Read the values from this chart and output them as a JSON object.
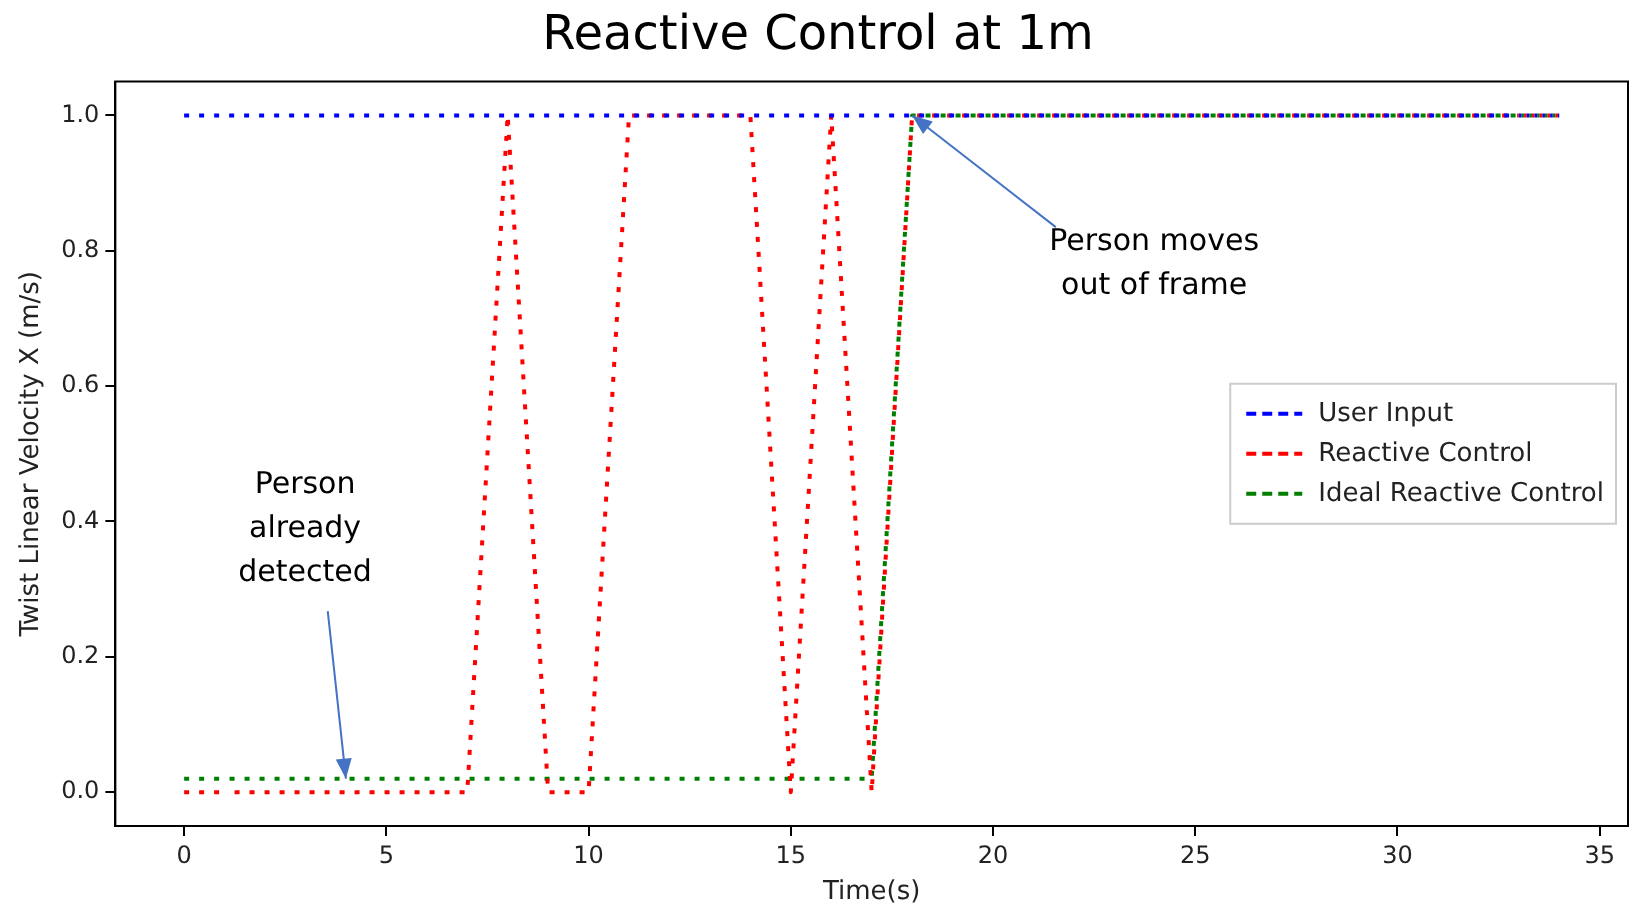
{
  "chart_data": {
    "type": "line",
    "title": "Reactive Control at 1m",
    "xlabel": "Time(s)",
    "ylabel": "Twist Linear Velocity X (m/s)",
    "x": [
      0,
      1,
      2,
      3,
      4,
      5,
      6,
      7,
      8,
      9,
      10,
      11,
      12,
      13,
      14,
      15,
      16,
      17,
      18,
      19,
      20,
      21,
      22,
      23,
      24,
      25,
      26,
      27,
      28,
      29,
      30,
      31,
      32,
      33,
      34
    ],
    "series": [
      {
        "name": "User Input",
        "color": "#0000ff",
        "values": [
          1,
          1,
          1,
          1,
          1,
          1,
          1,
          1,
          1,
          1,
          1,
          1,
          1,
          1,
          1,
          1,
          1,
          1,
          1,
          1,
          1,
          1,
          1,
          1,
          1,
          1,
          1,
          1,
          1,
          1,
          1,
          1,
          1,
          1,
          1
        ]
      },
      {
        "name": "Reactive Control",
        "color": "#ff0000",
        "values": [
          0,
          0,
          0,
          0,
          0,
          0,
          0,
          0,
          1,
          0,
          0,
          1,
          1,
          1,
          1,
          0,
          1,
          0,
          1,
          1,
          1,
          1,
          1,
          1,
          1,
          1,
          1,
          1,
          1,
          1,
          1,
          1,
          1,
          1,
          1
        ]
      },
      {
        "name": "Ideal Reactive Control",
        "color": "#008000",
        "values": [
          0.02,
          0.02,
          0.02,
          0.02,
          0.02,
          0.02,
          0.02,
          0.02,
          0.02,
          0.02,
          0.02,
          0.02,
          0.02,
          0.02,
          0.02,
          0.02,
          0.02,
          0.02,
          1,
          1,
          1,
          1,
          1,
          1,
          1,
          1,
          1,
          1,
          1,
          1,
          1,
          1,
          1,
          1,
          1
        ]
      }
    ],
    "xlim": [
      -1.7,
      35.7
    ],
    "ylim": [
      -0.05,
      1.05
    ],
    "xticks": [
      0,
      5,
      10,
      15,
      20,
      25,
      30,
      35
    ],
    "yticks": [
      {
        "value": 0,
        "label": "0.0"
      },
      {
        "value": 0.2,
        "label": "0.2"
      },
      {
        "value": 0.4,
        "label": "0.4"
      },
      {
        "value": 0.6,
        "label": "0.6"
      },
      {
        "value": 0.8,
        "label": "0.8"
      },
      {
        "value": 1,
        "label": "1.0"
      }
    ],
    "annotations": [
      {
        "text": "Person\nalready\ndetected",
        "x": 4,
        "y": 0.02
      },
      {
        "text": "Person moves\nout of frame",
        "x": 18,
        "y": 1
      }
    ],
    "line_style": "dashed",
    "marker": "none",
    "legend": "center right",
    "grid": false
  }
}
